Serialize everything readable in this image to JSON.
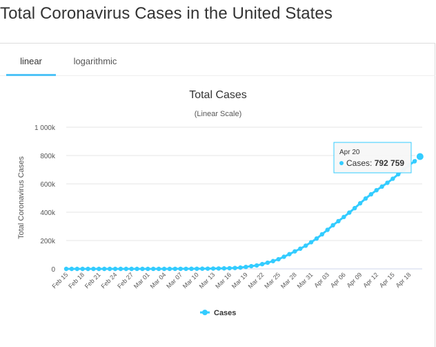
{
  "page": {
    "title": "Total Coronavirus Cases in the United States"
  },
  "tabs": [
    {
      "label": "linear",
      "active": true
    },
    {
      "label": "logarithmic",
      "active": false
    }
  ],
  "tooltip": {
    "date": "Apr 20",
    "series": "Cases",
    "value": "792 759"
  },
  "colors": {
    "series": "#33ccff",
    "accent": "#4fc3f7"
  },
  "chart_data": {
    "type": "line",
    "title": "Total Cases",
    "subtitle": "(Linear Scale)",
    "xlabel": "",
    "ylabel": "Total Coronavirus Cases",
    "ylim": [
      0,
      1000000
    ],
    "yticks": [
      0,
      200000,
      400000,
      600000,
      800000,
      1000000
    ],
    "ytick_labels": [
      "0",
      "200k",
      "400k",
      "600k",
      "800k",
      "1 000k"
    ],
    "xtick_labels": [
      "Feb 15",
      "Feb 18",
      "Feb 21",
      "Feb 24",
      "Feb 27",
      "Mar 01",
      "Mar 04",
      "Mar 07",
      "Mar 10",
      "Mar 13",
      "Mar 16",
      "Mar 19",
      "Mar 22",
      "Mar 25",
      "Mar 28",
      "Mar 31",
      "Apr 03",
      "Apr 06",
      "Apr 09",
      "Apr 12",
      "Apr 15",
      "Apr 18"
    ],
    "grid": true,
    "legend": "bottom-center",
    "series": [
      {
        "name": "Cases",
        "x": [
          "Feb 15",
          "Feb 16",
          "Feb 17",
          "Feb 18",
          "Feb 19",
          "Feb 20",
          "Feb 21",
          "Feb 22",
          "Feb 23",
          "Feb 24",
          "Feb 25",
          "Feb 26",
          "Feb 27",
          "Feb 28",
          "Feb 29",
          "Mar 01",
          "Mar 02",
          "Mar 03",
          "Mar 04",
          "Mar 05",
          "Mar 06",
          "Mar 07",
          "Mar 08",
          "Mar 09",
          "Mar 10",
          "Mar 11",
          "Mar 12",
          "Mar 13",
          "Mar 14",
          "Mar 15",
          "Mar 16",
          "Mar 17",
          "Mar 18",
          "Mar 19",
          "Mar 20",
          "Mar 21",
          "Mar 22",
          "Mar 23",
          "Mar 24",
          "Mar 25",
          "Mar 26",
          "Mar 27",
          "Mar 28",
          "Mar 29",
          "Mar 30",
          "Mar 31",
          "Apr 01",
          "Apr 02",
          "Apr 03",
          "Apr 04",
          "Apr 05",
          "Apr 06",
          "Apr 07",
          "Apr 08",
          "Apr 09",
          "Apr 10",
          "Apr 11",
          "Apr 12",
          "Apr 13",
          "Apr 14",
          "Apr 15",
          "Apr 16",
          "Apr 17",
          "Apr 18",
          "Apr 19",
          "Apr 20"
        ],
        "values": [
          15,
          15,
          15,
          15,
          15,
          15,
          35,
          35,
          35,
          53,
          53,
          59,
          60,
          62,
          70,
          75,
          100,
          124,
          158,
          221,
          319,
          435,
          541,
          704,
          994,
          1301,
          1697,
          2247,
          2943,
          3680,
          4663,
          6411,
          9197,
          13779,
          19367,
          24192,
          33592,
          43781,
          54856,
          68211,
          85435,
          104126,
          123578,
          142460,
          163788,
          188172,
          214003,
          244239,
          275586,
          308153,
          336906,
          366317,
          397121,
          428654,
          462780,
          496535,
          526396,
          555313,
          580619,
          607670,
          636350,
          667801,
          699706,
          732197,
          759086,
          792759
        ]
      }
    ]
  }
}
